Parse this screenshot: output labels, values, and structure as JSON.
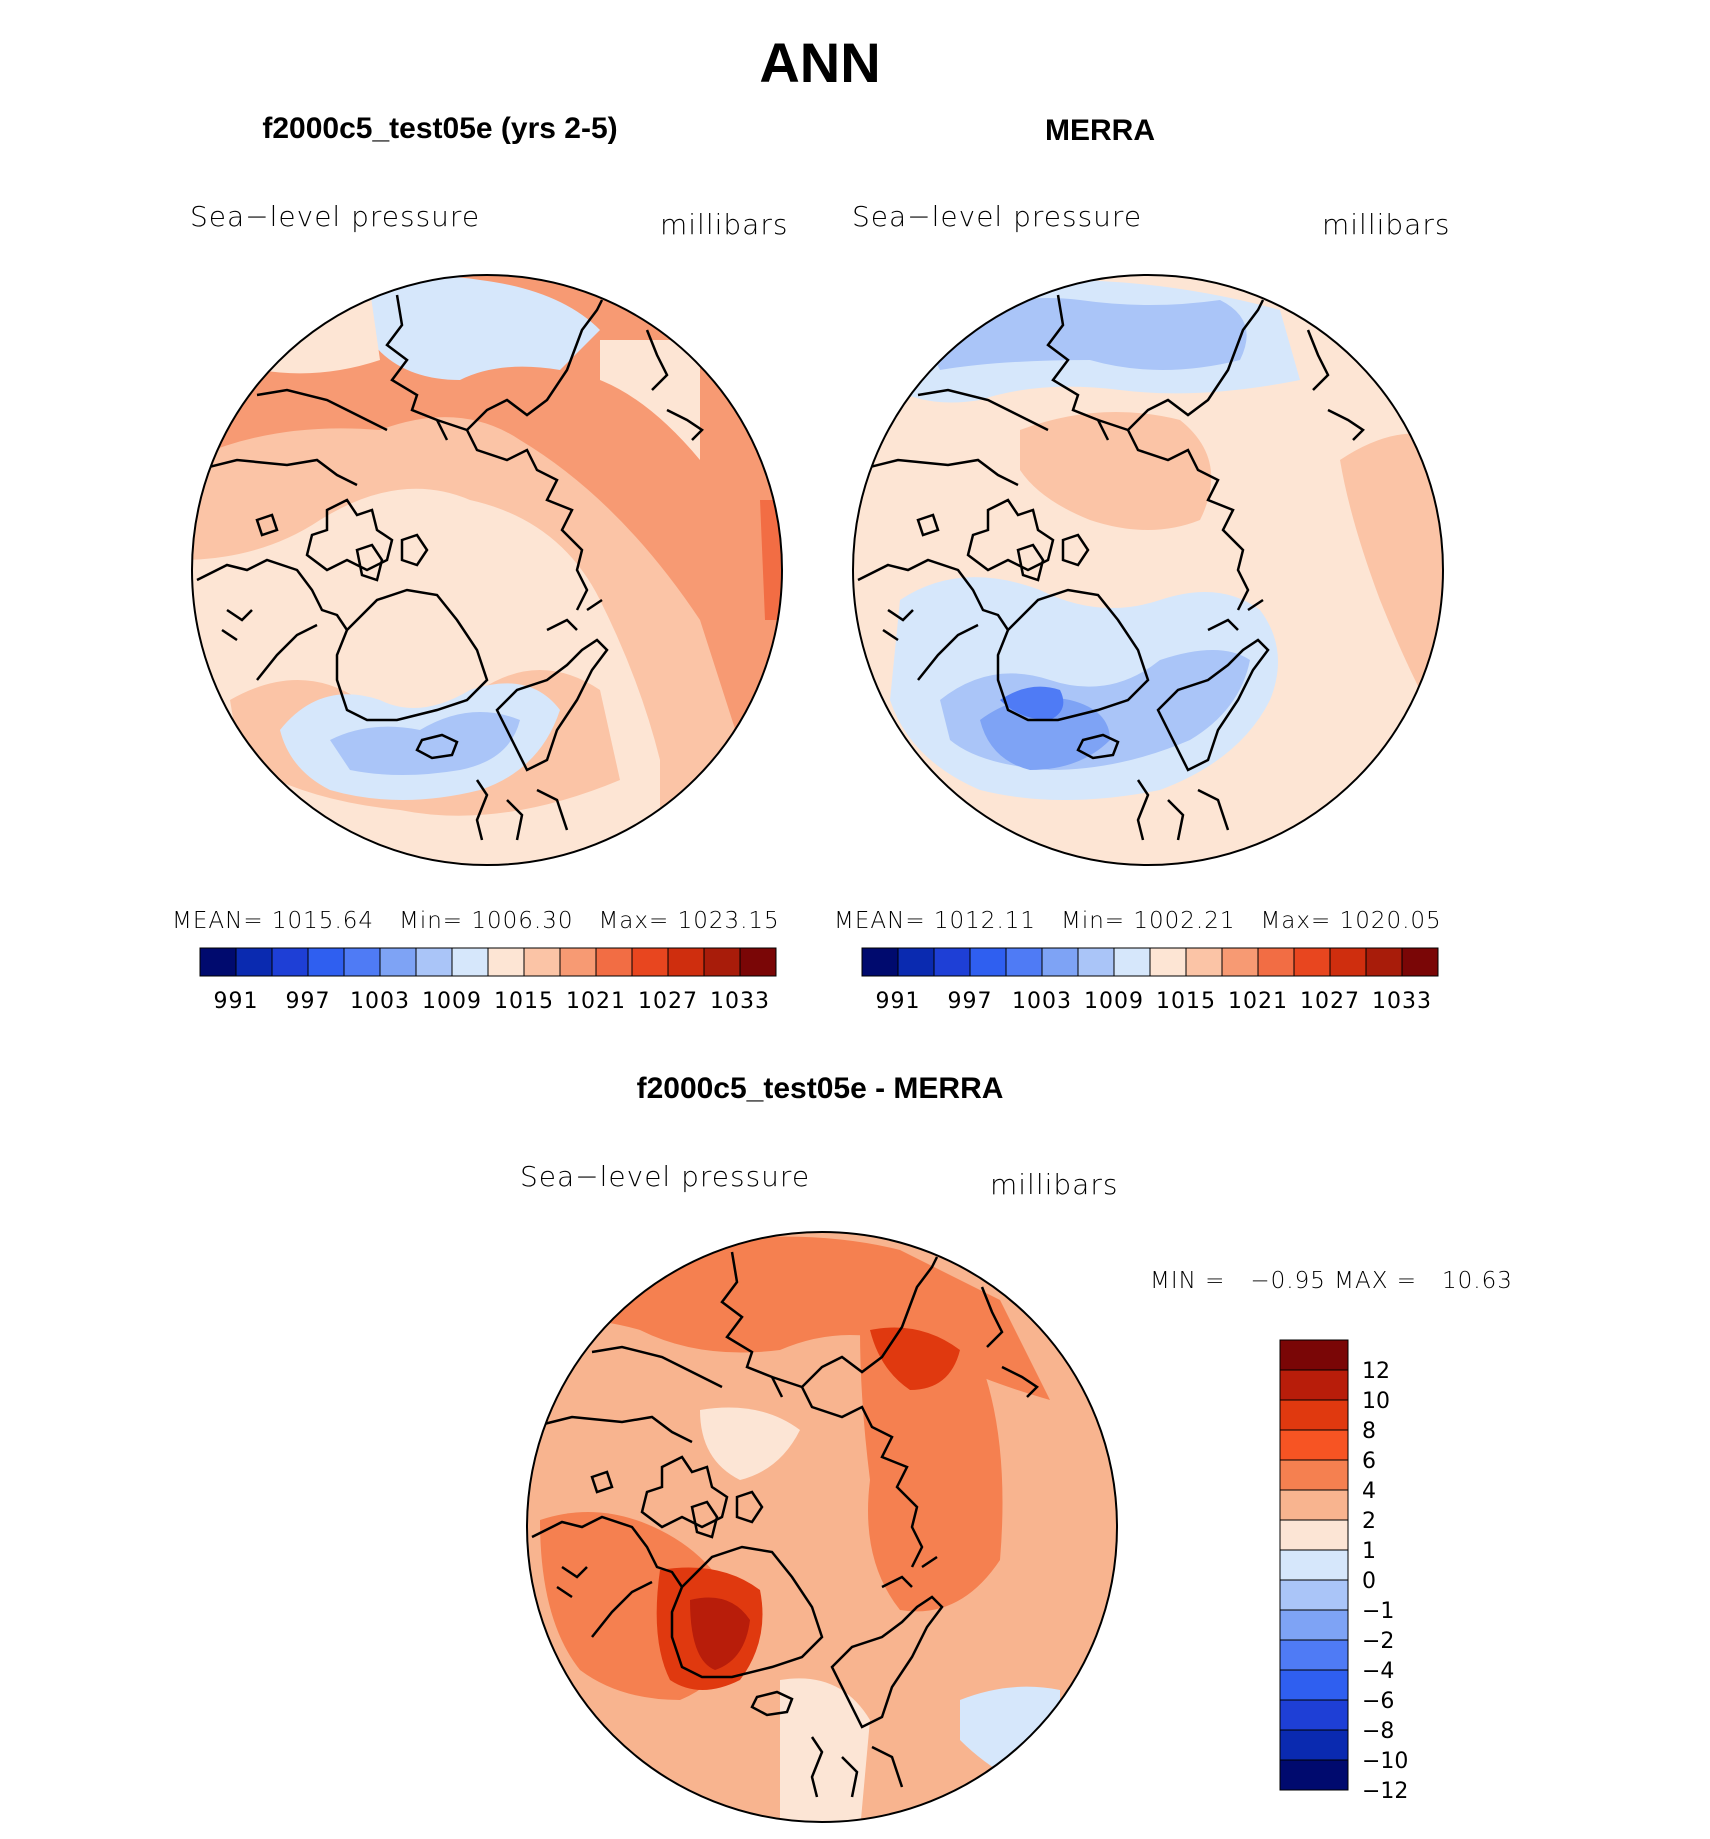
{
  "page": {
    "title": "ANN"
  },
  "panels": [
    {
      "heading": "f2000c5_test05e (yrs 2-5)",
      "variable": "Sea−level pressure",
      "units": "millibars",
      "stats": {
        "mean_label": "MEAN=",
        "mean": "1015.64",
        "min_label": "Min=",
        "min": "1006.30",
        "max_label": "Max=",
        "max": "1023.15"
      },
      "colorbar_labels": [
        "991",
        "997",
        "1003",
        "1009",
        "1015",
        "1021",
        "1027",
        "1033"
      ]
    },
    {
      "heading": "MERRA",
      "variable": "Sea−level pressure",
      "units": "millibars",
      "stats": {
        "mean_label": "MEAN=",
        "mean": "1012.11",
        "min_label": "Min=",
        "min": "1002.21",
        "max_label": "Max=",
        "max": "1020.05"
      },
      "colorbar_labels": [
        "991",
        "997",
        "1003",
        "1009",
        "1015",
        "1021",
        "1027",
        "1033"
      ]
    }
  ],
  "diff": {
    "heading": "f2000c5_test05e - MERRA",
    "variable": "Sea−level pressure",
    "units": "millibars",
    "min_label": "MIN =",
    "min": "−0.95",
    "max_label": "MAX =",
    "max": "10.63",
    "colorbar_labels": [
      "12",
      "10",
      "8",
      "6",
      "4",
      "2",
      "1",
      "0",
      "−1",
      "−2",
      "−4",
      "−6",
      "−8",
      "−10",
      "−12"
    ]
  },
  "palettes": {
    "abs": [
      "#000a6e",
      "#0a2ab0",
      "#1e3fd6",
      "#2f5ff0",
      "#4f7bf5",
      "#7ea3f5",
      "#aac5f8",
      "#d6e7fb",
      "#fde5d4",
      "#fbc4a6",
      "#f79a73",
      "#f26d44",
      "#e8461f",
      "#cf2e0e",
      "#a81c0a",
      "#7a0606"
    ],
    "diff": [
      "#7a0606",
      "#b81d0a",
      "#e0390f",
      "#f75423",
      "#f58050",
      "#f8b48f",
      "#fce5d5",
      "#d6e7fb",
      "#aac5f8",
      "#7ea3f5",
      "#4f7bf5",
      "#2f5ff0",
      "#1e3fd6",
      "#0a2ab0",
      "#000a6e"
    ]
  }
}
